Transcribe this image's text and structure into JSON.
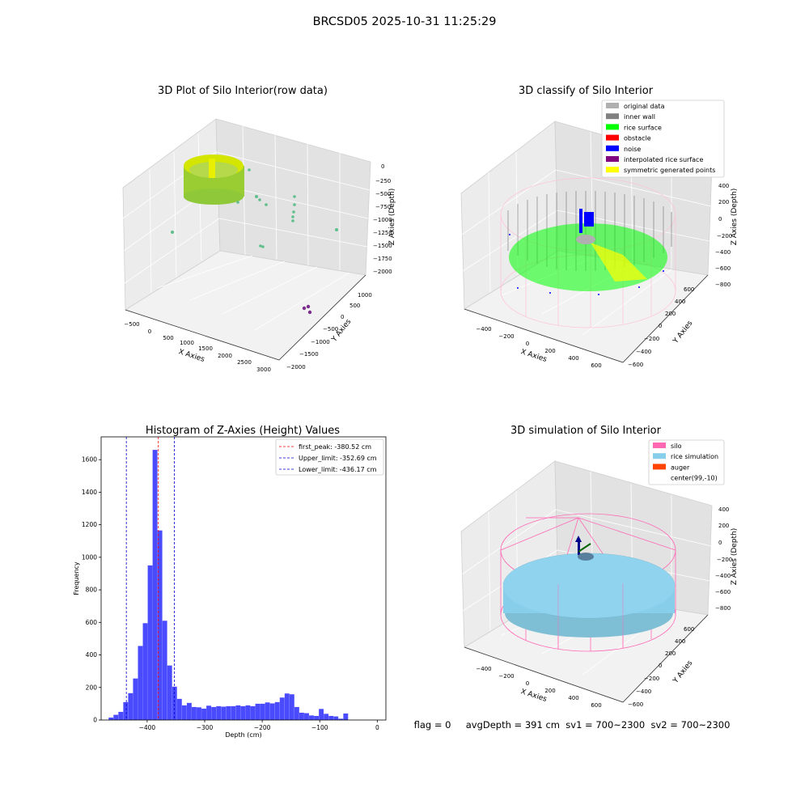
{
  "suptitle": "BRCSD05 2025-10-31 11:25:29",
  "colors": {
    "hist_bar": "#4a4aff",
    "first_peak": "#ff0000",
    "limit": "#0000cc",
    "original": "#b0b0b0",
    "inner_wall": "#808080",
    "rice_surface": "#00ff00",
    "obstacle": "#ff0000",
    "noise": "#0000ff",
    "interp_surface": "#800080",
    "symmetric": "#ffff00",
    "silo": "#ff69b4",
    "rice_sim": "#87ceeb",
    "auger": "#ff4500",
    "center": "#ffffff"
  },
  "panels": {
    "raw": {
      "title": "3D Plot of Silo Interior(row data)",
      "xlabel": "X Axies",
      "ylabel": "Y Axies",
      "zlabel": "Z Axies (Depth)",
      "xticks": [
        "−500",
        "0",
        "500",
        "1000",
        "1500",
        "2000",
        "2500",
        "3000"
      ],
      "yticks": [
        "1000",
        "500",
        "0",
        "−500",
        "−1000",
        "−1500",
        "−2000"
      ],
      "zticks": [
        "0",
        "−250",
        "−500",
        "−750",
        "−1000",
        "−1250",
        "−1500",
        "−1750",
        "−2000"
      ]
    },
    "classify": {
      "title": "3D classify of Silo Interior",
      "xlabel": "X Axies",
      "ylabel": "Y Axies",
      "zlabel": "Z Axies (Depth)",
      "xticks": [
        "−400",
        "−200",
        "0",
        "200",
        "400",
        "600"
      ],
      "yticks": [
        "600",
        "400",
        "200",
        "0",
        "−200",
        "−400",
        "−600"
      ],
      "zticks": [
        "400",
        "200",
        "0",
        "−200",
        "−400",
        "−600",
        "−800"
      ],
      "legend": [
        {
          "label": "original data",
          "color": "#b0b0b0"
        },
        {
          "label": "inner wall",
          "color": "#808080"
        },
        {
          "label": "rice surface",
          "color": "#00ff00"
        },
        {
          "label": "obstacle",
          "color": "#ff0000"
        },
        {
          "label": "noise",
          "color": "#0000ff"
        },
        {
          "label": "interpolated rice surface",
          "color": "#800080"
        },
        {
          "label": "symmetric generated points",
          "color": "#ffff00"
        }
      ]
    },
    "simulation": {
      "title": "3D simulation of Silo Interior",
      "xlabel": "X Axies",
      "ylabel": "Y Axies",
      "zlabel": "Z Axies (Depth)",
      "xticks": [
        "−400",
        "−200",
        "0",
        "200",
        "400",
        "600"
      ],
      "yticks": [
        "600",
        "400",
        "200",
        "0",
        "−200",
        "−400",
        "−600"
      ],
      "zticks": [
        "400",
        "200",
        "0",
        "−200",
        "−400",
        "−600",
        "−800"
      ],
      "legend": [
        {
          "label": "silo",
          "color": "#ff69b4"
        },
        {
          "label": "rice simulation",
          "color": "#87ceeb"
        },
        {
          "label": "auger",
          "color": "#ff4500"
        },
        {
          "label": "center(99,-10)",
          "color": "#ffffff"
        }
      ],
      "status": "flag = 0     avgDepth = 391 cm  sv1 = 700~2300  sv2 = 700~2300"
    }
  },
  "chart_data": [
    {
      "type": "bar",
      "title": "Histogram of Z-Axies (Height) Values",
      "xlabel": "Depth (cm)",
      "ylabel": "Frequency",
      "xlim": [
        -480,
        15
      ],
      "ylim": [
        0,
        1740
      ],
      "xticks": [
        -400,
        -300,
        -200,
        -100,
        0
      ],
      "yticks": [
        0,
        200,
        400,
        600,
        800,
        1000,
        1200,
        1400,
        1600
      ],
      "bin_start": -467,
      "bin_width": 8.5,
      "values": [
        15,
        32,
        50,
        110,
        165,
        255,
        455,
        595,
        950,
        1660,
        1165,
        610,
        335,
        205,
        130,
        90,
        105,
        80,
        78,
        70,
        88,
        80,
        85,
        82,
        85,
        85,
        90,
        85,
        90,
        85,
        100,
        100,
        108,
        102,
        110,
        138,
        163,
        158,
        80,
        45,
        42,
        28,
        25,
        68,
        38,
        25,
        22,
        8,
        40
      ],
      "vlines": [
        {
          "label": "first_peak: -380.52 cm",
          "x": -380.52,
          "color": "#ff0000"
        },
        {
          "label": "Upper_limit: -352.69 cm",
          "x": -352.69,
          "color": "#0000cc"
        },
        {
          "label": "Lower_limit: -436.17 cm",
          "x": -436.17,
          "color": "#0000cc"
        }
      ],
      "legend_position": "upper right"
    }
  ]
}
